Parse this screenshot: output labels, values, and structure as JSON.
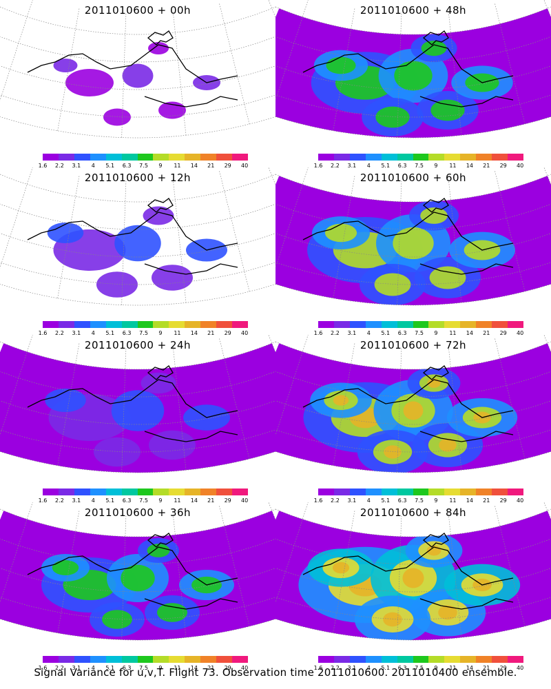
{
  "panels": [
    {
      "title": "2011010600 + 00h",
      "level": 0.0
    },
    {
      "title": "2011010600 + 48h",
      "level": 0.62
    },
    {
      "title": "2011010600 + 12h",
      "level": 0.25
    },
    {
      "title": "2011010600 + 60h",
      "level": 0.7
    },
    {
      "title": "2011010600 + 24h",
      "level": 0.35
    },
    {
      "title": "2011010600 + 72h",
      "level": 0.78
    },
    {
      "title": "2011010600 + 36h",
      "level": 0.5
    },
    {
      "title": "2011010600 + 84h",
      "level": 0.88
    }
  ],
  "colorbar": {
    "labels": [
      "1.6",
      "2.2",
      "3.1",
      "4",
      "5.1",
      "6.3",
      "7.5",
      "9",
      "11",
      "14",
      "21",
      "29",
      "40"
    ],
    "colors": [
      "#9b00e0",
      "#7a2ae6",
      "#2f52ff",
      "#1e90ff",
      "#00bfd8",
      "#00c8a0",
      "#1ec81e",
      "#b4dc28",
      "#e6dc32",
      "#e6b428",
      "#f08228",
      "#f0503c",
      "#f0197d"
    ]
  },
  "footer": "Signal Variance for u,v,T. Flight 73. Observation time 2011010600. 2011010400 ensemble."
}
